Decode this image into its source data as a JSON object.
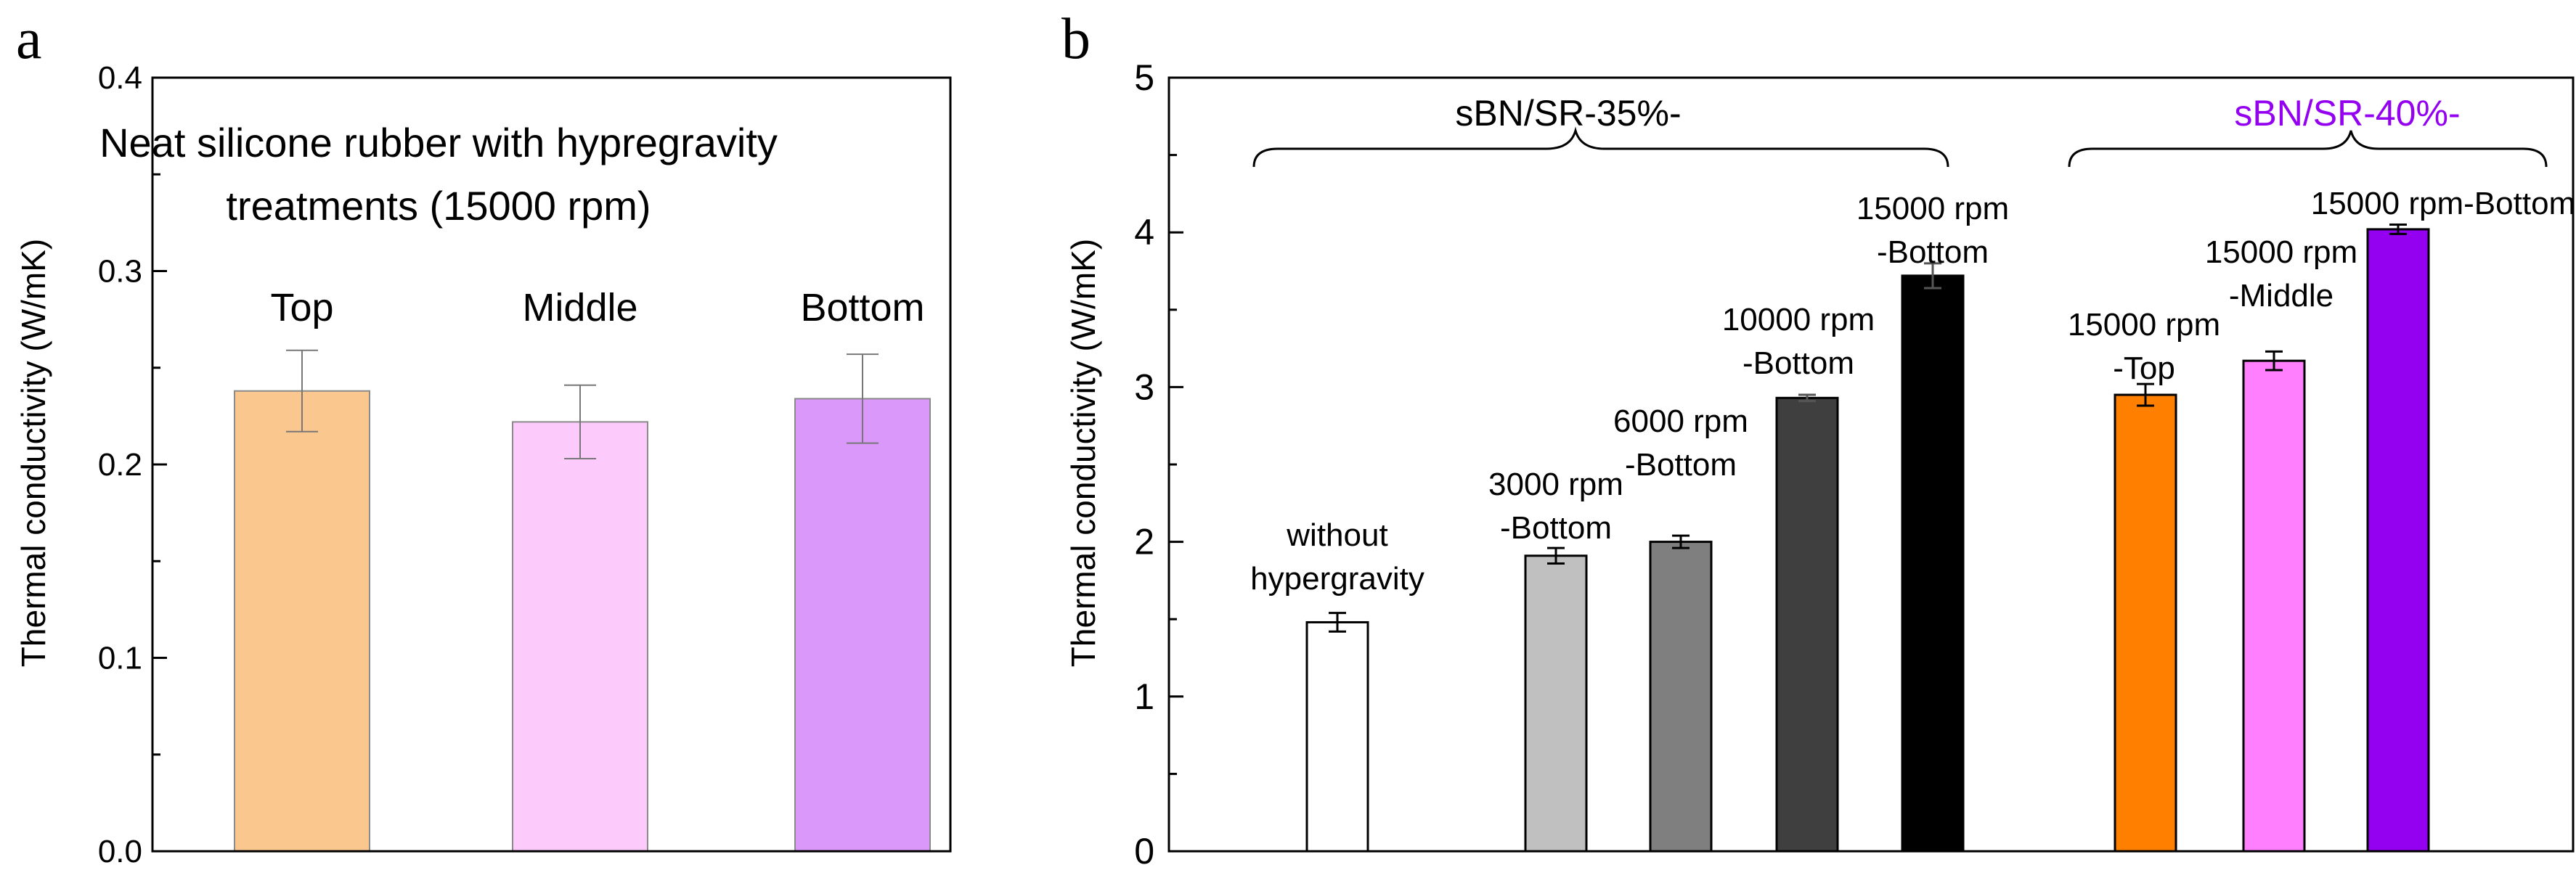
{
  "chart_data": [
    {
      "panel_label": "a",
      "type": "bar",
      "title": "Neat silicone rubber with hypregravity",
      "title_line2": "treatments (15000 rpm)",
      "ylabel": "Thermal conductivity (W/mK)",
      "xlabel": "",
      "ylim": [
        0.0,
        0.4
      ],
      "yticks": [
        "0.0",
        "0.1",
        "0.2",
        "0.3",
        "0.4"
      ],
      "categories": [
        "Top",
        "Middle",
        "Bottom"
      ],
      "values": [
        0.238,
        0.222,
        0.234
      ],
      "errors": [
        0.021,
        0.019,
        0.023
      ],
      "colors": [
        "#FAC78F",
        "#FCCBFC",
        "#DA98FA"
      ]
    },
    {
      "panel_label": "b",
      "type": "bar",
      "ylabel": "Thermal conductivity (W/mK)",
      "xlabel": "",
      "ylim": [
        0,
        5
      ],
      "yticks": [
        "0",
        "1",
        "2",
        "3",
        "4",
        "5"
      ],
      "group_labels": [
        {
          "text": "sBN/SR-35%-",
          "color": "#000000"
        },
        {
          "text": "sBN/SR-40%-",
          "color": "#9400F0"
        }
      ],
      "bars": [
        {
          "line1": "without",
          "line2": "hypergravity",
          "value": 1.48,
          "error": 0.06,
          "color": "#FFFFFF",
          "label_color": "#000000"
        },
        {
          "line1": "3000 rpm",
          "line2": "-Bottom",
          "value": 1.91,
          "error": 0.05,
          "color": "#C0C0C0",
          "label_color": "#000000"
        },
        {
          "line1": "6000 rpm",
          "line2": "-Bottom",
          "value": 2.0,
          "error": 0.04,
          "color": "#7F7F7F",
          "label_color": "#000000"
        },
        {
          "line1": "10000 rpm",
          "line2": "-Bottom",
          "value": 2.93,
          "error": 0.02,
          "color": "#3F3F3F",
          "label_color": "#000000"
        },
        {
          "line1": "15000 rpm",
          "line2": "-Bottom",
          "value": 3.72,
          "error": 0.08,
          "color": "#000000",
          "label_color": "#000000"
        },
        {
          "line1": "15000 rpm",
          "line2": "-Top",
          "value": 2.95,
          "error": 0.07,
          "color": "#FF7F00",
          "label_color": "#FF7F00"
        },
        {
          "line1": "15000 rpm",
          "line2": "-Middle",
          "value": 3.17,
          "error": 0.06,
          "color": "#FF7FFF",
          "label_color": "#F548EE"
        },
        {
          "line1": "15000 rpm-Bottom",
          "line2": "",
          "value": 4.02,
          "error": 0.03,
          "color": "#9400F0",
          "label_color": "#9400F0"
        }
      ]
    }
  ]
}
